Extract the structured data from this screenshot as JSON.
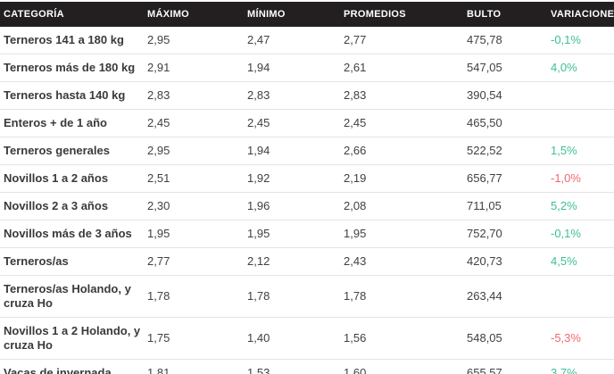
{
  "table": {
    "columns": [
      {
        "key": "categoria",
        "label": "CATEGORÍA"
      },
      {
        "key": "maximo",
        "label": "MÁXIMO"
      },
      {
        "key": "minimo",
        "label": "MÍNIMO"
      },
      {
        "key": "promedios",
        "label": "PROMEDIOS"
      },
      {
        "key": "bulto",
        "label": "BULTO"
      },
      {
        "key": "variacion",
        "label": "VARIACIONES"
      }
    ],
    "rows": [
      {
        "categoria": "Terneros 141 a 180 kg",
        "maximo": "2,95",
        "minimo": "2,47",
        "promedios": "2,77",
        "bulto": "475,78",
        "variacion": "-0,1%",
        "variacion_color": "green"
      },
      {
        "categoria": "Terneros más de 180 kg",
        "maximo": "2,91",
        "minimo": "1,94",
        "promedios": "2,61",
        "bulto": "547,05",
        "variacion": "4,0%",
        "variacion_color": "green"
      },
      {
        "categoria": "Terneros hasta 140 kg",
        "maximo": "2,83",
        "minimo": "2,83",
        "promedios": "2,83",
        "bulto": "390,54",
        "variacion": "",
        "variacion_color": null
      },
      {
        "categoria": "Enteros + de 1 año",
        "maximo": "2,45",
        "minimo": "2,45",
        "promedios": "2,45",
        "bulto": "465,50",
        "variacion": "",
        "variacion_color": null
      },
      {
        "categoria": "Terneros generales",
        "maximo": "2,95",
        "minimo": "1,94",
        "promedios": "2,66",
        "bulto": "522,52",
        "variacion": "1,5%",
        "variacion_color": "green"
      },
      {
        "categoria": "Novillos 1 a 2 años",
        "maximo": "2,51",
        "minimo": "1,92",
        "promedios": "2,19",
        "bulto": "656,77",
        "variacion": "-1,0%",
        "variacion_color": "red"
      },
      {
        "categoria": "Novillos 2 a 3 años",
        "maximo": "2,30",
        "minimo": "1,96",
        "promedios": "2,08",
        "bulto": "711,05",
        "variacion": "5,2%",
        "variacion_color": "green"
      },
      {
        "categoria": "Novillos más de 3 años",
        "maximo": "1,95",
        "minimo": "1,95",
        "promedios": "1,95",
        "bulto": "752,70",
        "variacion": "-0,1%",
        "variacion_color": "green"
      },
      {
        "categoria": "Terneros/as",
        "maximo": "2,77",
        "minimo": "2,12",
        "promedios": "2,43",
        "bulto": "420,73",
        "variacion": "4,5%",
        "variacion_color": "green"
      },
      {
        "categoria": "Terneros/as Holando, y cruza Ho",
        "maximo": "1,78",
        "minimo": "1,78",
        "promedios": "1,78",
        "bulto": "263,44",
        "variacion": "",
        "variacion_color": null
      },
      {
        "categoria": "Novillos 1 a 2 Holando, y cruza Ho",
        "maximo": "1,75",
        "minimo": "1,40",
        "promedios": "1,56",
        "bulto": "548,05",
        "variacion": "-5,3%",
        "variacion_color": "red"
      },
      {
        "categoria": "Vacas de invernada",
        "maximo": "1,81",
        "minimo": "1,53",
        "promedios": "1,60",
        "bulto": "655,57",
        "variacion": "3,7%",
        "variacion_color": "green"
      }
    ]
  },
  "colors": {
    "header_bg": "#231f20",
    "header_text": "#ffffff",
    "body_text": "#414042",
    "row_border": "#e4e4e4",
    "variation_green": "#3dbf93",
    "variation_red": "#f2696b"
  }
}
